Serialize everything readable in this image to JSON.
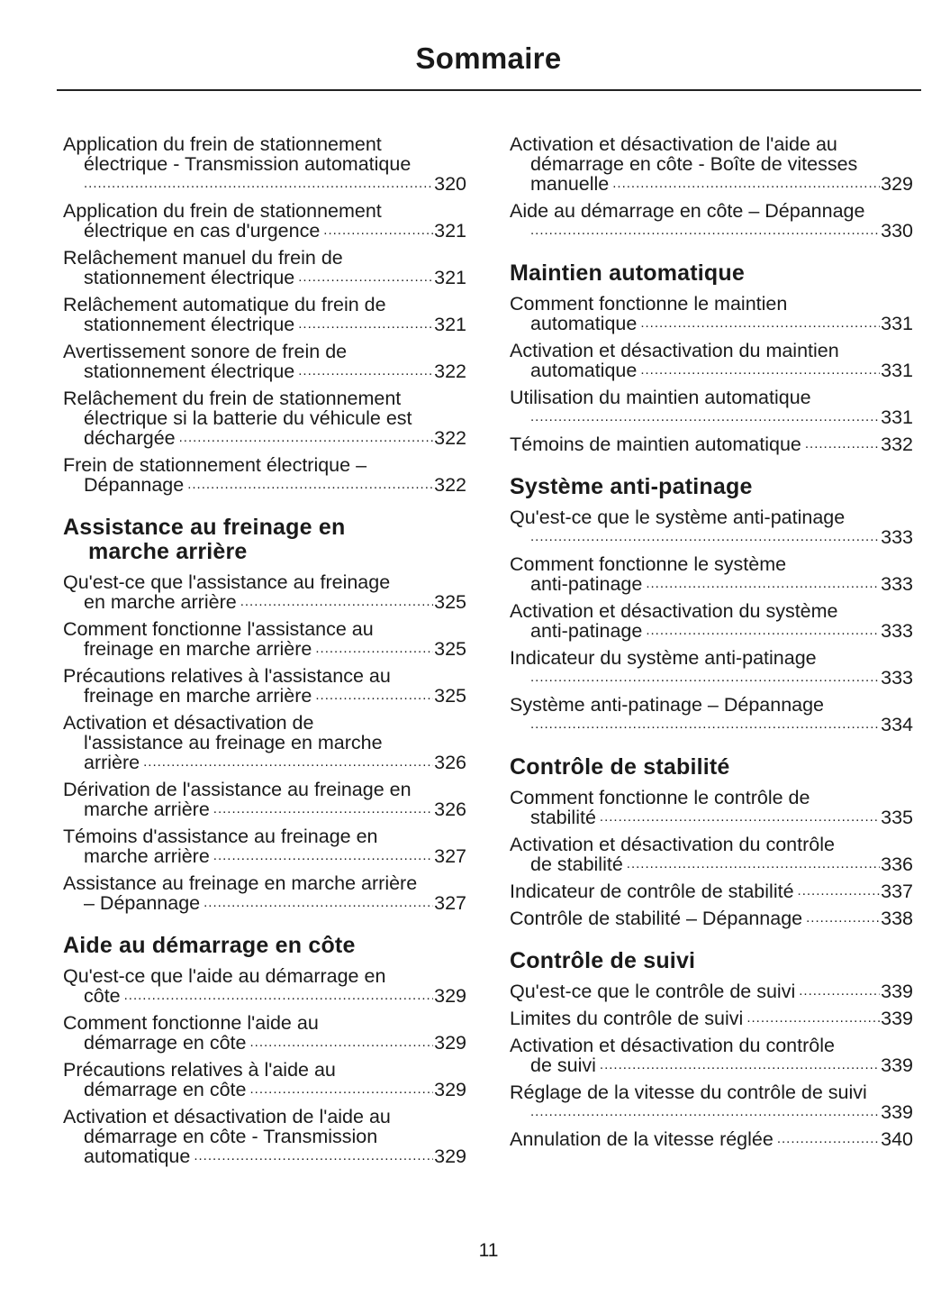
{
  "title": "Sommaire",
  "page_number": "11",
  "columns": [
    {
      "blocks": [
        {
          "type": "entry",
          "lines": [
            "Application du frein de stationnement",
            "électrique - Transmission automatique",
            ""
          ],
          "page": "320"
        },
        {
          "type": "entry",
          "lines": [
            "Application du frein de stationnement",
            "électrique en cas d'urgence"
          ],
          "page": "321"
        },
        {
          "type": "entry",
          "lines": [
            "Relâchement manuel du frein de",
            "stationnement électrique"
          ],
          "page": "321"
        },
        {
          "type": "entry",
          "lines": [
            "Relâchement automatique du frein de",
            "stationnement électrique"
          ],
          "page": "321"
        },
        {
          "type": "entry",
          "lines": [
            "Avertissement sonore de frein de",
            "stationnement électrique"
          ],
          "page": "322"
        },
        {
          "type": "entry",
          "lines": [
            "Relâchement du frein de stationnement",
            "électrique si la batterie du véhicule est",
            "déchargée"
          ],
          "page": "322"
        },
        {
          "type": "entry",
          "lines": [
            "Frein de stationnement électrique –",
            "Dépannage"
          ],
          "page": "322"
        },
        {
          "type": "heading",
          "lines": [
            "Assistance au freinage en",
            "marche arrière"
          ]
        },
        {
          "type": "entry",
          "lines": [
            "Qu'est-ce que l'assistance au freinage",
            "en marche arrière"
          ],
          "page": "325"
        },
        {
          "type": "entry",
          "lines": [
            "Comment fonctionne l'assistance au",
            "freinage en marche arrière"
          ],
          "page": "325"
        },
        {
          "type": "entry",
          "lines": [
            "Précautions relatives à l'assistance au",
            "freinage en marche arrière"
          ],
          "page": "325"
        },
        {
          "type": "entry",
          "lines": [
            "Activation et désactivation de",
            "l'assistance au freinage en marche",
            "arrière"
          ],
          "page": "326"
        },
        {
          "type": "entry",
          "lines": [
            "Dérivation de l'assistance au freinage en",
            "marche arrière"
          ],
          "page": "326"
        },
        {
          "type": "entry",
          "lines": [
            "Témoins d'assistance au freinage en",
            "marche arrière"
          ],
          "page": "327"
        },
        {
          "type": "entry",
          "lines": [
            "Assistance au freinage en marche arrière",
            "– Dépannage"
          ],
          "page": "327"
        },
        {
          "type": "heading",
          "lines": [
            "Aide au démarrage en côte"
          ]
        },
        {
          "type": "entry",
          "lines": [
            "Qu'est-ce que l'aide au démarrage en",
            "côte"
          ],
          "page": "329"
        },
        {
          "type": "entry",
          "lines": [
            "Comment fonctionne l'aide au",
            "démarrage en côte"
          ],
          "page": "329"
        },
        {
          "type": "entry",
          "lines": [
            "Précautions relatives à l'aide au",
            "démarrage en côte"
          ],
          "page": "329"
        },
        {
          "type": "entry",
          "lines": [
            "Activation et désactivation de l'aide au",
            "démarrage en côte - Transmission",
            "automatique"
          ],
          "page": "329"
        }
      ]
    },
    {
      "blocks": [
        {
          "type": "entry",
          "lines": [
            "Activation et désactivation de l'aide au",
            "démarrage en côte - Boîte de vitesses",
            "manuelle"
          ],
          "page": "329"
        },
        {
          "type": "entry",
          "lines": [
            "Aide au démarrage en côte – Dépannage",
            ""
          ],
          "page": "330"
        },
        {
          "type": "heading",
          "lines": [
            "Maintien automatique"
          ]
        },
        {
          "type": "entry",
          "lines": [
            "Comment fonctionne le maintien",
            "automatique"
          ],
          "page": "331"
        },
        {
          "type": "entry",
          "lines": [
            "Activation et désactivation du maintien",
            "automatique"
          ],
          "page": "331"
        },
        {
          "type": "entry",
          "lines": [
            "Utilisation du maintien automatique",
            ""
          ],
          "page": "331"
        },
        {
          "type": "entry",
          "lines": [
            "Témoins de maintien automatique"
          ],
          "page": "332"
        },
        {
          "type": "heading",
          "lines": [
            "Système anti-patinage"
          ]
        },
        {
          "type": "entry",
          "lines": [
            "Qu'est-ce que le système anti-patinage",
            ""
          ],
          "page": "333"
        },
        {
          "type": "entry",
          "lines": [
            "Comment fonctionne le système",
            "anti-patinage"
          ],
          "page": "333"
        },
        {
          "type": "entry",
          "lines": [
            "Activation et désactivation du système",
            "anti-patinage"
          ],
          "page": "333"
        },
        {
          "type": "entry",
          "lines": [
            "Indicateur du système anti-patinage",
            ""
          ],
          "page": "333"
        },
        {
          "type": "entry",
          "lines": [
            "Système anti-patinage – Dépannage",
            ""
          ],
          "page": "334"
        },
        {
          "type": "heading",
          "lines": [
            "Contrôle de stabilité"
          ]
        },
        {
          "type": "entry",
          "lines": [
            "Comment fonctionne le contrôle de",
            "stabilité"
          ],
          "page": "335"
        },
        {
          "type": "entry",
          "lines": [
            "Activation et désactivation du contrôle",
            "de stabilité"
          ],
          "page": "336"
        },
        {
          "type": "entry",
          "lines": [
            "Indicateur de contrôle de stabilité"
          ],
          "page": "337"
        },
        {
          "type": "entry",
          "lines": [
            "Contrôle de stabilité – Dépannage"
          ],
          "page": "338"
        },
        {
          "type": "heading",
          "lines": [
            "Contrôle de suivi"
          ]
        },
        {
          "type": "entry",
          "lines": [
            "Qu'est-ce que le contrôle de suivi"
          ],
          "page": "339"
        },
        {
          "type": "entry",
          "lines": [
            "Limites du contrôle de suivi"
          ],
          "page": "339"
        },
        {
          "type": "entry",
          "lines": [
            "Activation et désactivation du contrôle",
            "de suivi"
          ],
          "page": "339"
        },
        {
          "type": "entry",
          "lines": [
            "Réglage de la vitesse du contrôle de suivi",
            ""
          ],
          "page": "339"
        },
        {
          "type": "entry",
          "lines": [
            "Annulation de la vitesse réglée"
          ],
          "page": "340"
        }
      ]
    }
  ]
}
